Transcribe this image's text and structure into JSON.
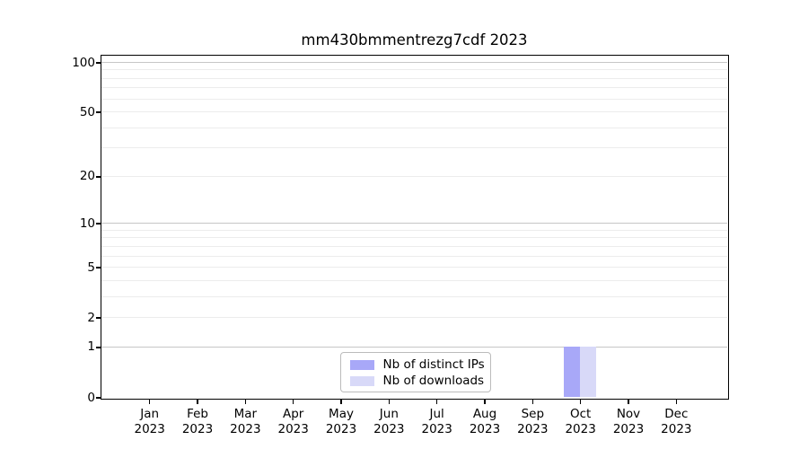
{
  "chart_data": {
    "type": "bar",
    "title": "mm430bmmentrezg7cdf 2023",
    "categories": [
      "Jan",
      "Feb",
      "Mar",
      "Apr",
      "May",
      "Jun",
      "Jul",
      "Aug",
      "Sep",
      "Oct",
      "Nov",
      "Dec"
    ],
    "x_year_label": "2023",
    "series": [
      {
        "name": "Nb of distinct IPs",
        "color": "#a8a8f8",
        "values": [
          0,
          0,
          0,
          0,
          0,
          0,
          0,
          0,
          0,
          1,
          0,
          0
        ]
      },
      {
        "name": "Nb of downloads",
        "color": "#d8d9f8",
        "values": [
          0,
          0,
          0,
          0,
          0,
          0,
          0,
          0,
          0,
          1,
          0,
          0
        ]
      }
    ],
    "y_axis": {
      "scale": "log1p",
      "lim": [
        0,
        100
      ],
      "tick_values": [
        0,
        1,
        2,
        5,
        10,
        20,
        50,
        100
      ],
      "major_gridlines": [
        1,
        10,
        100
      ],
      "minor_gridlines": [
        2,
        3,
        4,
        5,
        6,
        7,
        8,
        9,
        20,
        30,
        40,
        50,
        60,
        70,
        80,
        90
      ]
    },
    "legend": {
      "position": "lower center"
    },
    "colors": {
      "major_grid": "#c6c6c6",
      "minor_grid": "#ececec",
      "spine": "#000000",
      "legend_border": "#bbbbbb",
      "background": "#ffffff"
    },
    "grid": true
  }
}
